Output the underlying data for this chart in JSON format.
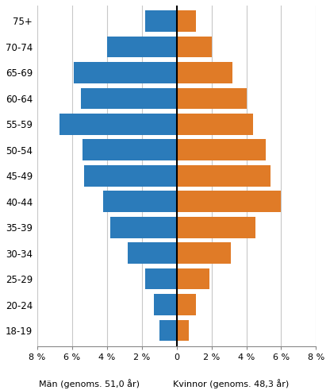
{
  "age_groups": [
    "18-19",
    "20-24",
    "25-29",
    "30-34",
    "35-39",
    "40-44",
    "45-49",
    "50-54",
    "55-59",
    "60-64",
    "65-69",
    "70-74",
    "75+"
  ],
  "men_values": [
    1.0,
    1.3,
    1.8,
    2.8,
    3.8,
    4.2,
    5.3,
    5.4,
    6.7,
    5.5,
    5.9,
    4.0,
    1.8
  ],
  "women_values": [
    0.7,
    1.1,
    1.9,
    3.1,
    4.5,
    6.0,
    5.4,
    5.1,
    4.4,
    4.0,
    3.2,
    2.0,
    1.1
  ],
  "men_color": "#2b7bba",
  "women_color": "#e07b27",
  "background_color": "#FFFFFF",
  "grid_color": "#C8C8C8",
  "xlim": [
    -8,
    8
  ],
  "xticks": [
    -8,
    -6,
    -4,
    -2,
    0,
    2,
    4,
    6,
    8
  ],
  "xlabel_men": "Män (genoms. 51,0 år)",
  "xlabel_women": "Kvinnor (genoms. 48,3 år)",
  "bar_height": 0.82
}
